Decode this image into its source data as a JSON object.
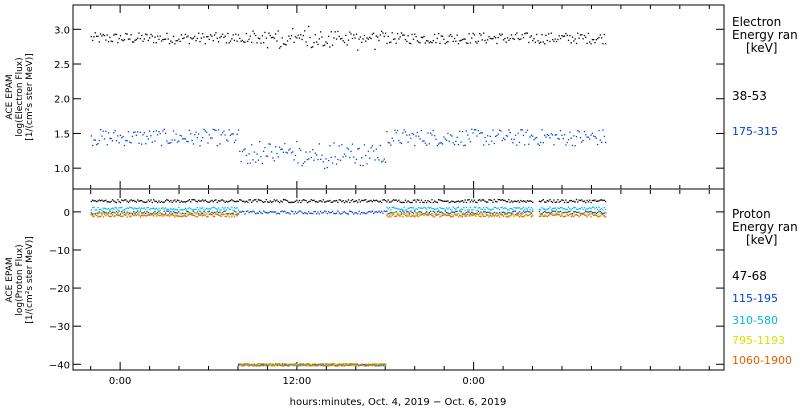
{
  "chart_data": [
    {
      "type": "scatter",
      "panel": "top",
      "ylabel_lines": [
        "ACE EPAM",
        "log(Electron Flux)",
        "[1/(cm²s ster MeV)]"
      ],
      "yticks": [
        "3.0",
        "2.5",
        "2.0",
        "1.5",
        "1.0"
      ],
      "ylim": [
        0.7,
        3.35
      ],
      "legend_title_lines": [
        "Electron",
        "Energy ran",
        "[keV]"
      ],
      "series": [
        {
          "name": "38-53",
          "color": "#000000",
          "x_hours": [
            -2.0,
            33.0
          ],
          "level": 2.88,
          "noise": 0.08,
          "dip": {
            "from": 8.0,
            "to": 18.0,
            "amount": 0.0
          }
        },
        {
          "name": "175-315",
          "color": "#0044cc",
          "x_hours": [
            -2.0,
            33.0
          ],
          "level": 1.45,
          "noise": 0.12,
          "dip": {
            "from": 8.0,
            "to": 18.0,
            "amount": 0.25
          }
        }
      ]
    },
    {
      "type": "scatter",
      "panel": "bottom",
      "ylabel_lines": [
        "ACE EPAM",
        "log(Proton Flux)",
        "[1/(cm²s ster MeV)]"
      ],
      "yticks": [
        "0",
        "−10",
        "−20",
        "−30",
        "−40"
      ],
      "ylim": [
        -41.5,
        6
      ],
      "legend_title_lines": [
        "Proton",
        "Energy ran",
        "[keV]"
      ],
      "series": [
        {
          "name": "47-68",
          "color": "#000000",
          "level": 3.0
        },
        {
          "name": "115-195",
          "color": "#0044cc",
          "level": 0.0
        },
        {
          "name": "310-580",
          "color": "#00bbcc",
          "level": 1.0
        },
        {
          "name": "795-1193",
          "color": "#dddd00",
          "level": -0.5
        },
        {
          "name": "1060-1900",
          "color": "#e06000",
          "level": -0.8
        }
      ],
      "fill_value_segment_hours": [
        8.0,
        18.0
      ],
      "fill_value_level": -40
    }
  ],
  "xaxis": {
    "range_hours": [
      -3.2,
      41.0
    ],
    "ticks": [
      {
        "hour": 0,
        "label": "0:00"
      },
      {
        "hour": 12,
        "label": "12:00"
      },
      {
        "hour": 24,
        "label": "0:00"
      }
    ],
    "xlabel": "hours:minutes, Oct.  4, 2019 − Oct.  6, 2019"
  }
}
